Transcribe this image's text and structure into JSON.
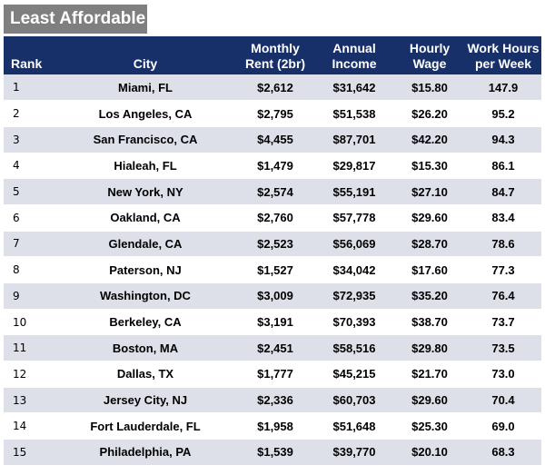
{
  "title": "Least Affordable",
  "headers": {
    "rank": "Rank",
    "city": "City",
    "rent": "Monthly\nRent (2br)",
    "income": "Annual\nIncome",
    "wage": "Hourly\nWage",
    "hours": "Work Hours\nper Week"
  },
  "rows": [
    {
      "rank": "1",
      "city": "Miami, FL",
      "rent": "$2,612",
      "income": "$31,642",
      "wage": "$15.80",
      "hours": "147.9"
    },
    {
      "rank": "2",
      "city": "Los Angeles, CA",
      "rent": "$2,795",
      "income": "$51,538",
      "wage": "$26.20",
      "hours": "95.2"
    },
    {
      "rank": "3",
      "city": "San Francisco, CA",
      "rent": "$4,455",
      "income": "$87,701",
      "wage": "$42.20",
      "hours": "94.3"
    },
    {
      "rank": "4",
      "city": "Hialeah, FL",
      "rent": "$1,479",
      "income": "$29,817",
      "wage": "$15.30",
      "hours": "86.1"
    },
    {
      "rank": "5",
      "city": "New York, NY",
      "rent": "$2,574",
      "income": "$55,191",
      "wage": "$27.10",
      "hours": "84.7"
    },
    {
      "rank": "6",
      "city": "Oakland, CA",
      "rent": "$2,760",
      "income": "$57,778",
      "wage": "$29.60",
      "hours": "83.4"
    },
    {
      "rank": "7",
      "city": "Glendale, CA",
      "rent": "$2,523",
      "income": "$56,069",
      "wage": "$28.70",
      "hours": "78.6"
    },
    {
      "rank": "8",
      "city": "Paterson, NJ",
      "rent": "$1,527",
      "income": "$34,042",
      "wage": "$17.60",
      "hours": "77.3"
    },
    {
      "rank": "9",
      "city": "Washington, DC",
      "rent": "$3,009",
      "income": "$72,935",
      "wage": "$35.20",
      "hours": "76.4"
    },
    {
      "rank": "10",
      "city": "Berkeley, CA",
      "rent": "$3,191",
      "income": "$70,393",
      "wage": "$38.70",
      "hours": "73.7"
    },
    {
      "rank": "11",
      "city": "Boston, MA",
      "rent": "$2,451",
      "income": "$58,516",
      "wage": "$29.80",
      "hours": "73.5"
    },
    {
      "rank": "12",
      "city": "Dallas, TX",
      "rent": "$1,777",
      "income": "$45,215",
      "wage": "$21.70",
      "hours": "73.0"
    },
    {
      "rank": "13",
      "city": "Jersey City, NJ",
      "rent": "$2,336",
      "income": "$60,703",
      "wage": "$29.60",
      "hours": "70.4"
    },
    {
      "rank": "14",
      "city": "Fort Lauderdale, FL",
      "rent": "$1,958",
      "income": "$51,648",
      "wage": "$25.30",
      "hours": "69.0"
    },
    {
      "rank": "15",
      "city": "Philadelphia, PA",
      "rent": "$1,539",
      "income": "$39,770",
      "wage": "$20.10",
      "hours": "68.3"
    }
  ]
}
